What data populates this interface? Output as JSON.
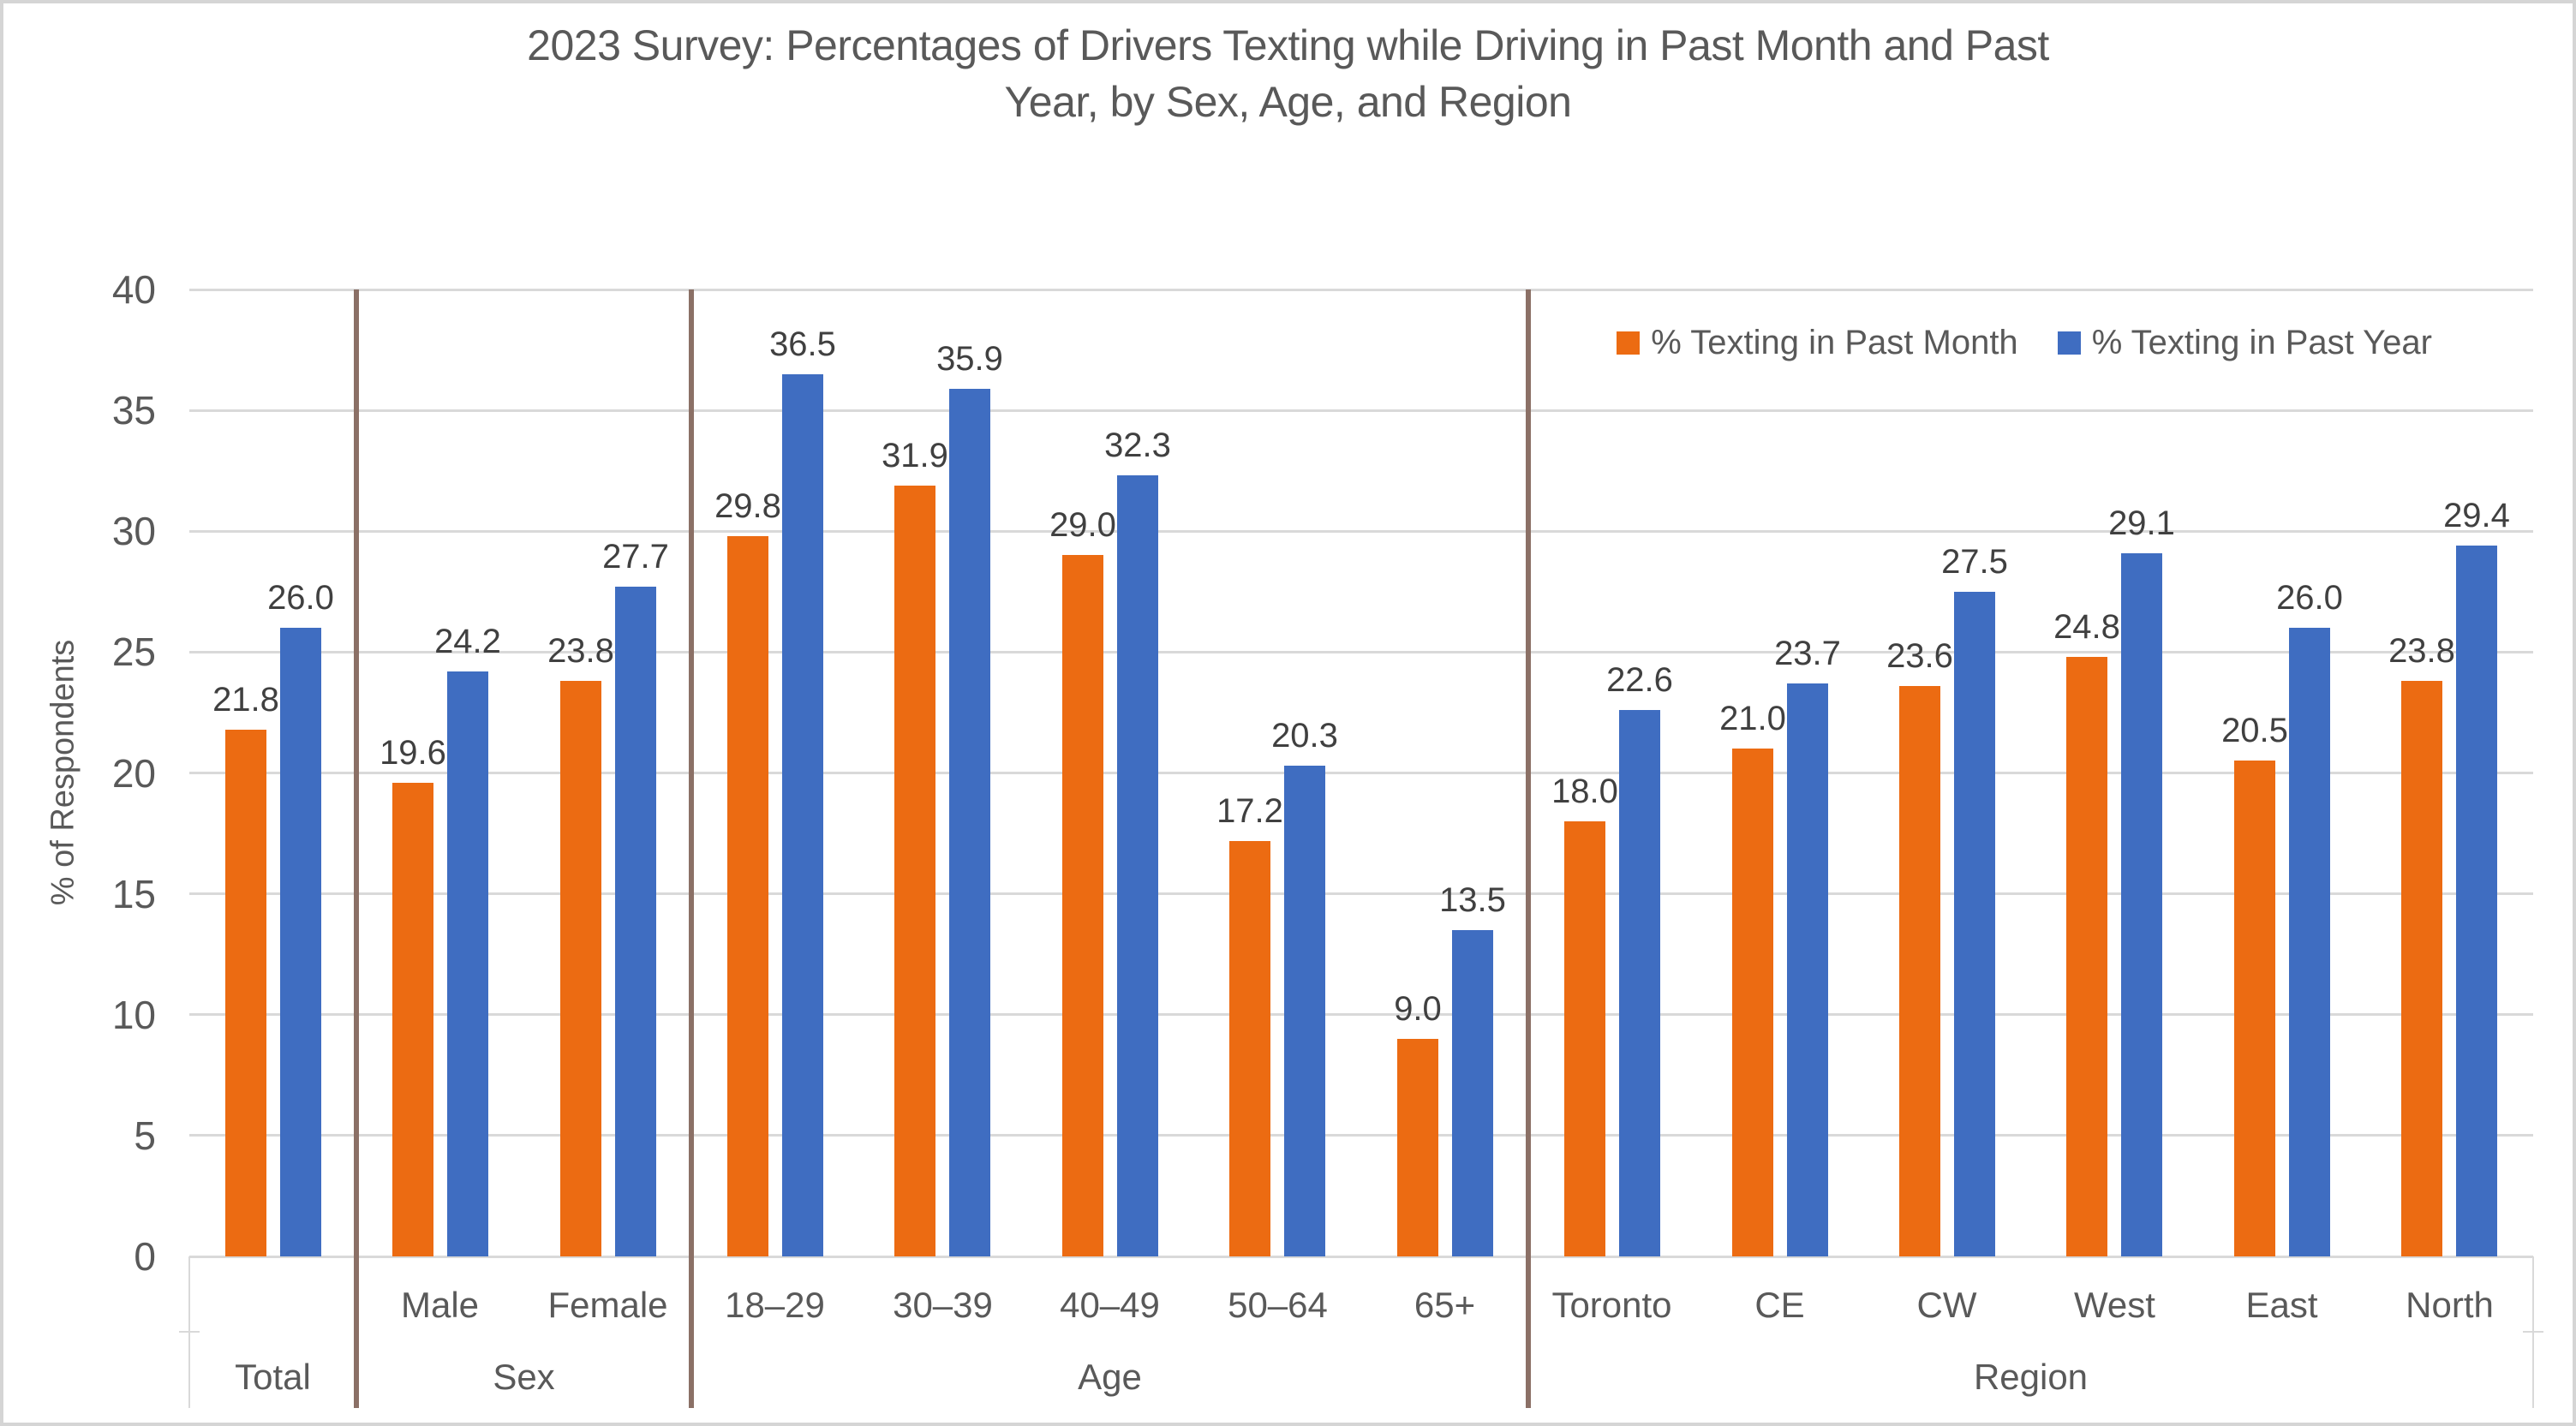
{
  "window": {
    "background": "#FFFFFF",
    "border_color": "#D5D5D5"
  },
  "chart_data": {
    "type": "bar",
    "title": "2023 Survey: Percentages of Drivers Texting while Driving in Past Month and Past Year, by Sex, Age, and Region",
    "title_lines": [
      "2023 Survey: Percentages of Drivers Texting while Driving in Past Month and Past",
      "Year, by Sex, Age, and Region"
    ],
    "ylabel": "% of Respondents",
    "xlabel": "",
    "ylim": [
      0,
      40
    ],
    "ytick_step": 5,
    "grid": true,
    "legend_position": "top-right",
    "value_labels": "one-decimal",
    "groups": [
      {
        "label": "Total",
        "sub_labels": [
          ""
        ]
      },
      {
        "label": "Sex",
        "sub_labels": [
          "Male",
          "Female"
        ]
      },
      {
        "label": "Age",
        "sub_labels": [
          "18–29",
          "30–39",
          "40–49",
          "50–64",
          "65+"
        ]
      },
      {
        "label": "Region",
        "sub_labels": [
          "Toronto",
          "CE",
          "CW",
          "West",
          "East",
          "North"
        ]
      }
    ],
    "categories": [
      "Total",
      "Male",
      "Female",
      "18–29",
      "30–39",
      "40–49",
      "50–64",
      "65+",
      "Toronto",
      "CE",
      "CW",
      "West",
      "East",
      "North"
    ],
    "series": [
      {
        "name": "% Texting in Past Month",
        "color": "#EC6B12",
        "values": [
          21.8,
          19.6,
          23.8,
          29.8,
          31.9,
          29.0,
          17.2,
          9.0,
          18.0,
          21.0,
          23.6,
          24.8,
          20.5,
          23.8
        ]
      },
      {
        "name": "% Texting in Past Year",
        "color": "#3F6DC1",
        "values": [
          26.0,
          24.2,
          27.7,
          36.5,
          35.9,
          32.3,
          20.3,
          13.5,
          22.6,
          23.7,
          27.5,
          29.1,
          26.0,
          29.4
        ]
      }
    ],
    "style": {
      "grid_color": "#D9D9D9",
      "axis_box_color": "#D9D9D9",
      "separator_color": "#8B7066",
      "text_color": "#595959",
      "data_label_color": "#404040"
    }
  }
}
